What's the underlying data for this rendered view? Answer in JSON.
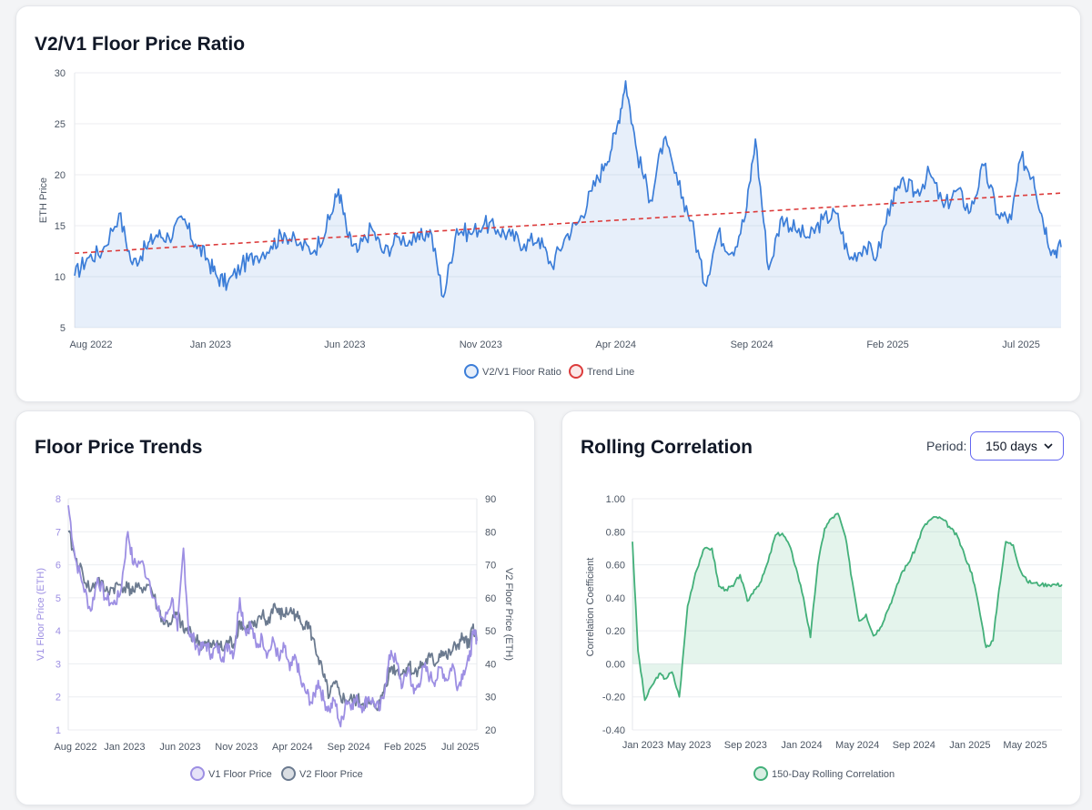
{
  "ratio_card": {
    "title": "V2/V1 Floor Price Ratio"
  },
  "trends_card": {
    "title": "Floor Price Trends"
  },
  "corr_card": {
    "title": "Rolling Correlation",
    "period_label": "Period:",
    "period_value": "150 days"
  },
  "colors": {
    "ratio": "#3b7dd8",
    "trend": "#dc3b3b",
    "v1": "#9d8fe3",
    "v2": "#6b7a8f",
    "corr": "#43b07a"
  },
  "chart_data": [
    {
      "type": "line",
      "title": "V2/V1 Floor Price Ratio",
      "ylabel": "ETH Price",
      "ylim": [
        5,
        30
      ],
      "yticks": [
        "5",
        "10",
        "15",
        "20",
        "25",
        "30"
      ],
      "xticks": [
        "Aug 2022",
        "Jan 2023",
        "Jun 2023",
        "Nov 2023",
        "Apr 2024",
        "Sep 2024",
        "Feb 2025",
        "Jul 2025"
      ],
      "legend_position": "bottom",
      "series": [
        {
          "name": "V2/V1 Floor Ratio",
          "fill": true,
          "x": [
            "2022-08-01",
            "2022-08-15",
            "2022-09-01",
            "2022-09-20",
            "2022-10-05",
            "2022-10-20",
            "2022-11-01",
            "2022-11-15",
            "2022-12-01",
            "2022-12-15",
            "2022-12-28",
            "2023-01-08",
            "2023-01-20",
            "2023-02-05",
            "2023-02-20",
            "2023-03-10",
            "2023-03-25",
            "2023-04-10",
            "2023-04-28",
            "2023-05-15",
            "2023-05-25",
            "2023-06-05",
            "2023-06-15",
            "2023-07-01",
            "2023-07-15",
            "2023-08-01",
            "2023-08-20",
            "2023-09-05",
            "2023-09-20",
            "2023-10-05",
            "2023-10-20",
            "2023-11-05",
            "2023-11-20",
            "2023-12-05",
            "2023-12-20",
            "2024-01-05",
            "2024-01-20",
            "2024-02-05",
            "2024-02-20",
            "2024-03-05",
            "2024-03-20",
            "2024-04-01",
            "2024-04-12",
            "2024-04-25",
            "2024-05-10",
            "2024-05-25",
            "2024-06-10",
            "2024-06-25",
            "2024-07-10",
            "2024-07-25",
            "2024-08-10",
            "2024-08-25",
            "2024-09-05",
            "2024-09-20",
            "2024-10-05",
            "2024-10-20",
            "2024-11-05",
            "2024-11-20",
            "2024-12-05",
            "2024-12-20",
            "2025-01-05",
            "2025-01-20",
            "2025-02-05",
            "2025-02-20",
            "2025-03-05",
            "2025-03-20",
            "2025-04-05",
            "2025-04-20",
            "2025-05-05",
            "2025-05-20",
            "2025-06-05",
            "2025-06-20",
            "2025-07-01",
            "2025-07-15",
            "2025-07-25",
            "2025-08-05",
            "2025-08-15"
          ],
          "y": [
            10.1,
            11.8,
            12.5,
            16.2,
            11.2,
            12.8,
            14.1,
            13.9,
            15.6,
            13.2,
            11.8,
            10.0,
            9.3,
            11.1,
            12.0,
            13.0,
            14.3,
            13.1,
            12.6,
            15.6,
            18.6,
            13.8,
            12.4,
            14.8,
            12.3,
            13.9,
            13.4,
            14.6,
            8.0,
            14.7,
            14.2,
            15.2,
            14.6,
            14.0,
            13.2,
            13.8,
            11.1,
            14.0,
            15.5,
            18.4,
            21.1,
            24.0,
            29.2,
            22.1,
            17.5,
            23.5,
            19.0,
            15.5,
            9.2,
            14.3,
            12.4,
            16.0,
            23.5,
            10.7,
            15.9,
            14.6,
            13.8,
            15.6,
            16.2,
            11.7,
            13.0,
            12.0,
            17.5,
            19.1,
            18.2,
            20.2,
            16.8,
            18.5,
            16.4,
            20.9,
            16.1,
            15.6,
            21.7,
            19.8,
            15.8,
            12.5,
            12.9
          ]
        },
        {
          "name": "Trend Line",
          "dashed": true,
          "x": [
            "2022-08-01",
            "2025-08-15"
          ],
          "y": [
            12.3,
            18.2
          ]
        }
      ]
    },
    {
      "type": "line",
      "title": "Floor Price Trends",
      "ylabel": "V1 Floor Price (ETH)",
      "ylabel_right": "V2 Floor Price (ETH)",
      "ylim": [
        1,
        8
      ],
      "ylim_right": [
        20,
        90
      ],
      "yticks": [
        "1",
        "2",
        "3",
        "4",
        "5",
        "6",
        "7",
        "8"
      ],
      "yticks_right": [
        "20",
        "30",
        "40",
        "50",
        "60",
        "70",
        "80",
        "90"
      ],
      "xticks": [
        "Aug 2022",
        "Jan 2023",
        "Jun 2023",
        "Nov 2023",
        "Apr 2024",
        "Sep 2024",
        "Feb 2025",
        "Jul 2025"
      ],
      "legend_position": "bottom",
      "series": [
        {
          "name": "V1 Floor Price",
          "axis": "left",
          "x": [
            "2022-08-01",
            "2022-08-20",
            "2022-09-10",
            "2022-10-01",
            "2022-10-20",
            "2022-11-10",
            "2022-12-01",
            "2022-12-20",
            "2023-01-10",
            "2023-01-25",
            "2023-02-15",
            "2023-03-10",
            "2023-04-01",
            "2023-04-20",
            "2023-05-10",
            "2023-05-25",
            "2023-06-10",
            "2023-06-25",
            "2023-07-10",
            "2023-07-25",
            "2023-08-10",
            "2023-08-25",
            "2023-09-10",
            "2023-09-25",
            "2023-10-10",
            "2023-10-25",
            "2023-11-10",
            "2023-11-25",
            "2023-12-10",
            "2023-12-25",
            "2024-01-10",
            "2024-01-25",
            "2024-02-10",
            "2024-02-25",
            "2024-03-10",
            "2024-03-25",
            "2024-04-10",
            "2024-04-25",
            "2024-05-10",
            "2024-05-25",
            "2024-06-10",
            "2024-06-25",
            "2024-07-10",
            "2024-07-25",
            "2024-08-10",
            "2024-08-25",
            "2024-09-10",
            "2024-09-25",
            "2024-10-10",
            "2024-10-25",
            "2024-11-10",
            "2024-11-25",
            "2024-12-10",
            "2024-12-25",
            "2025-01-10",
            "2025-01-25",
            "2025-02-10",
            "2025-02-25",
            "2025-03-10",
            "2025-03-25",
            "2025-04-10",
            "2025-04-25",
            "2025-05-10",
            "2025-05-25",
            "2025-06-10",
            "2025-06-25",
            "2025-07-10",
            "2025-07-25",
            "2025-08-05",
            "2025-08-15"
          ],
          "y": [
            7.8,
            6.2,
            5.4,
            4.6,
            5.6,
            5.0,
            4.8,
            5.1,
            7.0,
            6.0,
            6.1,
            5.5,
            4.6,
            4.3,
            5.0,
            4.0,
            6.5,
            3.9,
            3.7,
            3.4,
            3.6,
            3.3,
            3.5,
            3.2,
            3.6,
            3.3,
            5.0,
            4.0,
            4.2,
            3.5,
            3.8,
            3.3,
            3.7,
            3.1,
            3.5,
            2.8,
            3.2,
            2.4,
            2.1,
            1.8,
            2.5,
            1.9,
            1.6,
            1.9,
            1.1,
            1.9,
            1.8,
            1.9,
            1.7,
            2.0,
            1.8,
            1.6,
            2.4,
            3.4,
            3.0,
            2.3,
            2.9,
            2.1,
            2.4,
            2.9,
            2.6,
            2.5,
            2.9,
            2.5,
            3.0,
            2.3,
            2.8,
            3.1,
            3.9,
            3.8
          ]
        },
        {
          "name": "V2 Floor Price",
          "axis": "right",
          "x": [
            "2022-08-01",
            "2022-08-20",
            "2022-09-10",
            "2022-10-01",
            "2022-10-20",
            "2022-11-10",
            "2022-12-01",
            "2022-12-20",
            "2023-01-10",
            "2023-01-25",
            "2023-02-15",
            "2023-03-10",
            "2023-04-01",
            "2023-04-20",
            "2023-05-10",
            "2023-05-25",
            "2023-06-10",
            "2023-06-25",
            "2023-07-10",
            "2023-07-25",
            "2023-08-10",
            "2023-08-25",
            "2023-09-10",
            "2023-09-25",
            "2023-10-10",
            "2023-10-25",
            "2023-11-10",
            "2023-11-25",
            "2023-12-10",
            "2023-12-25",
            "2024-01-10",
            "2024-01-25",
            "2024-02-10",
            "2024-02-25",
            "2024-03-10",
            "2024-03-25",
            "2024-04-10",
            "2024-04-25",
            "2024-05-10",
            "2024-05-25",
            "2024-06-10",
            "2024-06-25",
            "2024-07-10",
            "2024-07-25",
            "2024-08-10",
            "2024-08-25",
            "2024-09-10",
            "2024-09-25",
            "2024-10-10",
            "2024-10-25",
            "2024-11-10",
            "2024-11-25",
            "2024-12-10",
            "2024-12-25",
            "2025-01-10",
            "2025-01-25",
            "2025-02-10",
            "2025-02-25",
            "2025-03-10",
            "2025-03-25",
            "2025-04-10",
            "2025-04-25",
            "2025-05-10",
            "2025-05-25",
            "2025-06-10",
            "2025-06-25",
            "2025-07-10",
            "2025-07-25",
            "2025-08-05",
            "2025-08-15"
          ],
          "y": [
            80,
            72,
            67,
            62,
            66,
            62,
            63,
            64,
            63,
            62,
            63,
            64,
            57,
            52,
            53,
            55,
            50,
            50,
            48,
            46,
            46,
            45,
            47,
            44,
            47,
            46,
            53,
            50,
            52,
            51,
            55,
            52,
            58,
            55,
            55,
            56,
            55,
            52,
            53,
            48,
            42,
            36,
            30,
            34,
            30,
            29,
            29,
            29,
            28,
            28,
            27,
            28,
            34,
            39,
            38,
            37,
            40,
            37,
            39,
            40,
            42,
            40,
            44,
            42,
            44,
            46,
            48,
            45,
            52,
            47
          ]
        }
      ]
    },
    {
      "type": "area",
      "title": "Rolling Correlation",
      "ylabel": "Correlation Coefficient",
      "ylim": [
        -0.4,
        1.0
      ],
      "yticks": [
        "-0.40",
        "-0.20",
        "0.00",
        "0.20",
        "0.40",
        "0.60",
        "0.80",
        "1.00"
      ],
      "xticks": [
        "Jan 2023",
        "May 2023",
        "Sep 2023",
        "Jan 2024",
        "May 2024",
        "Sep 2024",
        "Jan 2025",
        "May 2025"
      ],
      "legend_position": "bottom",
      "series": [
        {
          "name": "150-Day Rolling Correlation",
          "fill": true,
          "x": [
            "2022-12-29",
            "2023-01-10",
            "2023-01-25",
            "2023-02-10",
            "2023-02-25",
            "2023-03-10",
            "2023-03-25",
            "2023-04-10",
            "2023-04-28",
            "2023-05-15",
            "2023-06-01",
            "2023-06-20",
            "2023-07-05",
            "2023-07-20",
            "2023-08-05",
            "2023-08-20",
            "2023-09-05",
            "2023-09-20",
            "2023-10-05",
            "2023-10-20",
            "2023-11-05",
            "2023-11-20",
            "2023-12-05",
            "2023-12-20",
            "2024-01-05",
            "2024-01-20",
            "2024-02-05",
            "2024-02-20",
            "2024-03-05",
            "2024-03-20",
            "2024-04-05",
            "2024-04-20",
            "2024-05-05",
            "2024-05-20",
            "2024-06-05",
            "2024-06-20",
            "2024-07-05",
            "2024-07-20",
            "2024-08-05",
            "2024-08-20",
            "2024-09-05",
            "2024-09-20",
            "2024-10-05",
            "2024-10-20",
            "2024-11-05",
            "2024-11-20",
            "2024-12-05",
            "2024-12-20",
            "2025-01-05",
            "2025-01-20",
            "2025-02-05",
            "2025-02-20",
            "2025-03-05",
            "2025-03-20",
            "2025-04-05",
            "2025-04-20",
            "2025-05-05",
            "2025-05-20",
            "2025-06-05",
            "2025-06-20",
            "2025-07-05",
            "2025-07-20"
          ],
          "y": [
            0.74,
            0.08,
            -0.22,
            -0.13,
            -0.06,
            -0.09,
            -0.05,
            -0.2,
            0.35,
            0.55,
            0.69,
            0.7,
            0.47,
            0.45,
            0.47,
            0.54,
            0.38,
            0.45,
            0.5,
            0.62,
            0.78,
            0.79,
            0.72,
            0.58,
            0.4,
            0.16,
            0.6,
            0.82,
            0.88,
            0.91,
            0.77,
            0.5,
            0.26,
            0.3,
            0.17,
            0.22,
            0.32,
            0.42,
            0.55,
            0.61,
            0.7,
            0.82,
            0.87,
            0.89,
            0.87,
            0.82,
            0.77,
            0.66,
            0.55,
            0.35,
            0.1,
            0.14,
            0.45,
            0.74,
            0.72,
            0.57,
            0.5,
            0.49,
            0.48,
            0.48,
            0.48,
            0.48
          ]
        }
      ]
    }
  ]
}
